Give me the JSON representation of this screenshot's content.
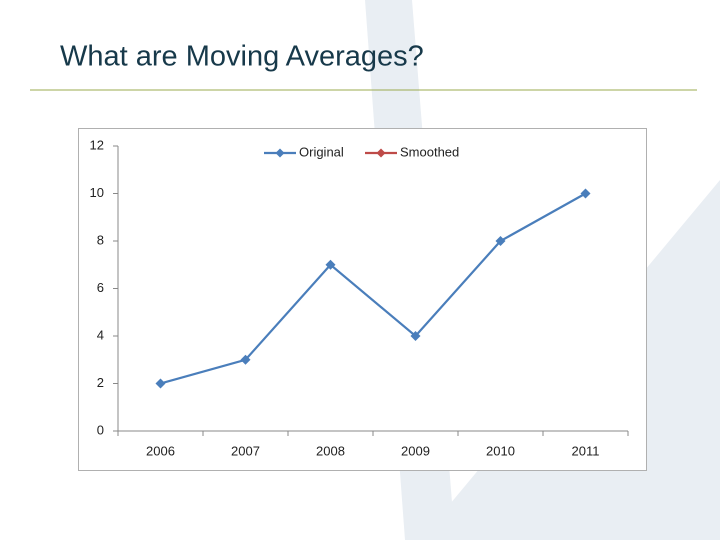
{
  "slide_title": "What are Moving Averages?",
  "chart_data": {
    "type": "line",
    "categories": [
      "2006",
      "2007",
      "2008",
      "2009",
      "2010",
      "2011"
    ],
    "series": [
      {
        "name": "Original",
        "color": "#4a7ebb",
        "values": [
          2,
          3,
          7,
          4,
          8,
          10
        ]
      },
      {
        "name": "Smoothed",
        "color": "#be4b48",
        "values": [
          null,
          null,
          null,
          null,
          null,
          null
        ]
      }
    ],
    "ylim": [
      0,
      12
    ],
    "yticks": [
      0,
      2,
      4,
      6,
      8,
      10,
      12
    ],
    "grid": false,
    "legend": "top"
  }
}
